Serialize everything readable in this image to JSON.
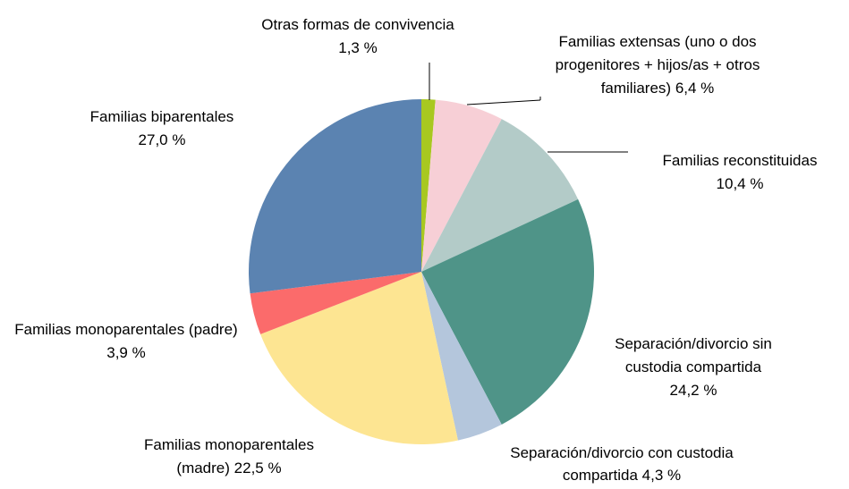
{
  "chart_data": {
    "type": "pie",
    "categories": [
      "Otras formas de convivencia",
      "Familias extensas (uno o dos progenitores +  hijos/as + otros familiares)",
      "Familias reconstituidas",
      "Separación/divorcio sin custodia compartida",
      "Separación/divorcio con custodia compartida",
      "Familias monoparentales (madre)",
      "Familias monoparentales (padre)",
      "Familias biparentales"
    ],
    "values": [
      1.3,
      6.4,
      10.4,
      24.2,
      4.3,
      22.5,
      3.9,
      27.0
    ],
    "value_labels": [
      "1,3 %",
      "6,4 %",
      "10,4 %",
      "24,2 %",
      "4,3 %",
      "22,5 %",
      "3,9 %",
      "27,0 %"
    ],
    "colors": [
      "#a8c820",
      "#f7cfd6",
      "#b3cbc8",
      "#4f9488",
      "#b4c6dc",
      "#fde592",
      "#fb6b6b",
      "#5b83b1"
    ]
  }
}
